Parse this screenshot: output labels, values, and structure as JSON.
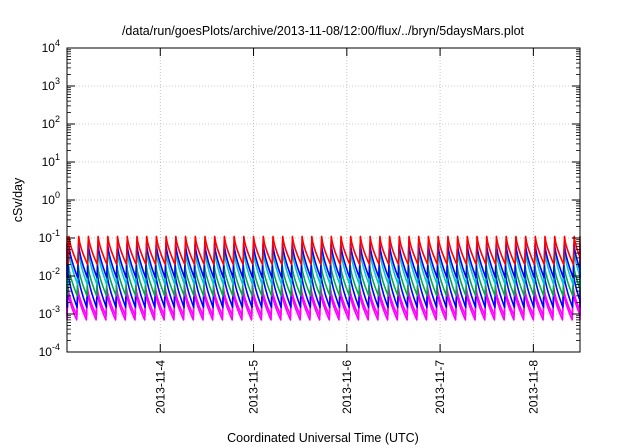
{
  "chart_data": {
    "type": "line",
    "title": "/data/run/goesPlots/archive/2013-11-08/12:00/flux/../bryn/5daysMars.plot",
    "xlabel": "Coordinated Universal Time (UTC)",
    "ylabel": "cSv/day",
    "yscale": "log",
    "ylim": [
      0.0001,
      10000
    ],
    "xlim": [
      "2013-11-03T00:00",
      "2013-11-08T12:00"
    ],
    "y_ticks": [
      {
        "base": "10",
        "exp": "4",
        "value": 10000
      },
      {
        "base": "10",
        "exp": "3",
        "value": 1000
      },
      {
        "base": "10",
        "exp": "2",
        "value": 100
      },
      {
        "base": "10",
        "exp": "1",
        "value": 10
      },
      {
        "base": "10",
        "exp": "0",
        "value": 1
      },
      {
        "base": "10",
        "exp": "-1",
        "value": 0.1
      },
      {
        "base": "10",
        "exp": "-2",
        "value": 0.01
      },
      {
        "base": "10",
        "exp": "-3",
        "value": 0.001
      },
      {
        "base": "10",
        "exp": "-4",
        "value": 0.0001
      }
    ],
    "x_ticks": [
      "2013-11-4",
      "2013-11-5",
      "2013-11-6",
      "2013-11-7",
      "2013-11-8"
    ],
    "x_tick_dates": [
      "2013-11-04",
      "2013-11-05",
      "2013-11-06",
      "2013-11-07",
      "2013-11-08"
    ],
    "grid": true,
    "legend": "none",
    "sawtooth_period_hours": 2.5,
    "series": [
      {
        "color": "#ff00ff",
        "peak": 0.004,
        "trough": 0.0007
      },
      {
        "color": "#ff00ff",
        "peak": 0.005,
        "trough": 0.0009
      },
      {
        "color": "#0000ff",
        "peak": 0.012,
        "trough": 0.0015
      },
      {
        "color": "#00aa44",
        "peak": 0.02,
        "trough": 0.003
      },
      {
        "color": "#00c8c8",
        "peak": 0.05,
        "trough": 0.006
      },
      {
        "color": "#0000ff",
        "peak": 0.07,
        "trough": 0.009
      },
      {
        "color": "#ff0000",
        "peak": 0.11,
        "trough": 0.02
      }
    ]
  }
}
